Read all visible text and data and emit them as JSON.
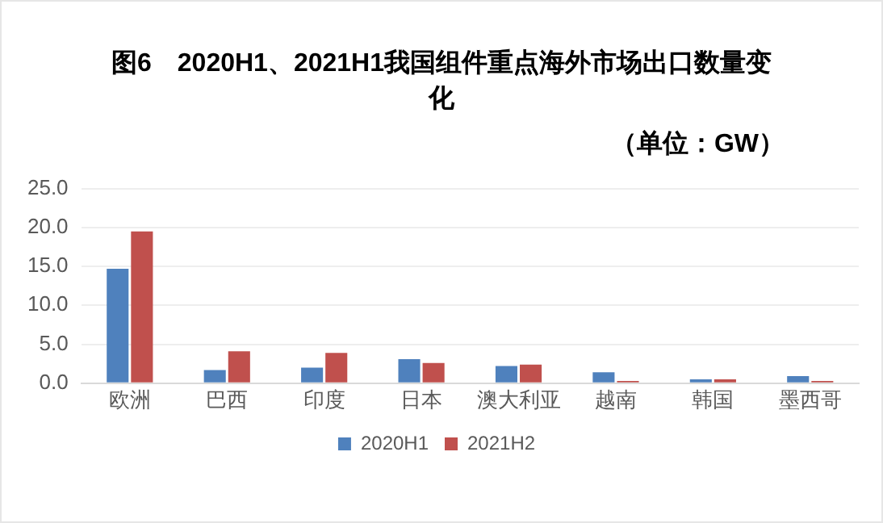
{
  "chart_data": {
    "type": "bar",
    "title": "图6　2020H1、2021H1我国组件重点海外市场出口数量变化",
    "subtitle": "（单位：GW）",
    "categories": [
      "欧洲",
      "巴西",
      "印度",
      "日本",
      "澳大利亚",
      "越南",
      "韩国",
      "墨西哥"
    ],
    "series": [
      {
        "name": "2020H1",
        "color": "#4f81bd",
        "values": [
          14.7,
          1.7,
          2.0,
          3.1,
          2.2,
          1.4,
          0.5,
          0.9
        ]
      },
      {
        "name": "2021H2",
        "color": "#c0504d",
        "values": [
          19.5,
          4.1,
          3.9,
          2.6,
          2.4,
          0.3,
          0.5,
          0.3
        ]
      }
    ],
    "ylim": [
      0,
      25
    ],
    "yticks": [
      {
        "value": 0,
        "label": "0.0"
      },
      {
        "value": 5,
        "label": "5.0"
      },
      {
        "value": 10,
        "label": "10.0"
      },
      {
        "value": 15,
        "label": "15.0"
      },
      {
        "value": 20,
        "label": "20.0"
      },
      {
        "value": 25,
        "label": "25.0"
      }
    ],
    "grid": "y",
    "legend": "bottom"
  }
}
